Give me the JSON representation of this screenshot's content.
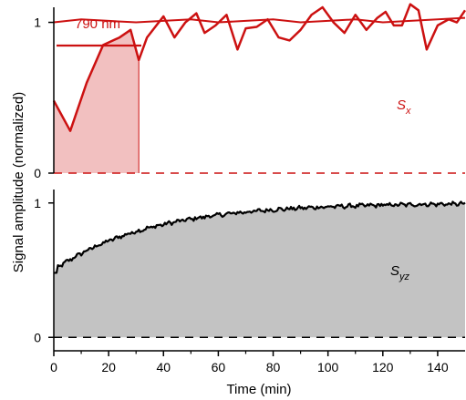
{
  "colors": {
    "red": "#cc1111",
    "red_fill": "#f2c0c0",
    "gray_fill": "#c3c3c3",
    "black": "#000000"
  },
  "chart_data": [
    {
      "type": "line",
      "panel": "top",
      "xlim": [
        0,
        150
      ],
      "ylim": [
        0,
        1.1
      ],
      "yticks": [
        0,
        1
      ],
      "ytick_labels": [
        "0",
        "1"
      ],
      "legend_text": "790 nm",
      "series_label": "S",
      "series_label_sub": "x",
      "series": [
        {
          "role": "signal",
          "x": [
            0,
            6,
            12,
            18,
            24,
            28,
            31,
            34,
            37,
            40,
            44,
            48,
            52,
            55,
            59,
            63,
            67,
            70,
            74,
            78,
            82,
            86,
            90,
            94,
            98,
            102,
            106,
            110,
            114,
            118,
            121,
            124,
            127,
            130,
            133,
            136,
            140,
            144,
            147,
            150
          ],
          "y": [
            0.48,
            0.28,
            0.6,
            0.85,
            0.9,
            0.95,
            0.75,
            0.9,
            0.97,
            1.04,
            0.9,
            1.0,
            1.06,
            0.93,
            0.98,
            1.05,
            0.82,
            0.96,
            0.97,
            1.02,
            0.9,
            0.88,
            0.95,
            1.05,
            1.1,
            1.0,
            0.93,
            1.05,
            0.95,
            1.03,
            1.07,
            0.98,
            0.98,
            1.12,
            1.08,
            0.82,
            0.98,
            1.02,
            1.0,
            1.08
          ]
        },
        {
          "role": "reference",
          "x": [
            0,
            10,
            20,
            30,
            40,
            50,
            60,
            70,
            80,
            90,
            100,
            110,
            120,
            130,
            140,
            150
          ],
          "y": [
            1.0,
            1.02,
            1.01,
            1.0,
            1.01,
            1.02,
            1.0,
            1.01,
            1.02,
            1.0,
            1.01,
            1.02,
            1.0,
            1.01,
            1.02,
            1.03
          ]
        }
      ],
      "shaded_region_x": [
        0,
        31
      ],
      "zero_line": "dashed"
    },
    {
      "type": "area",
      "panel": "bottom",
      "xlim": [
        0,
        150
      ],
      "ylim": [
        -0.1,
        1.1
      ],
      "yticks": [
        0,
        1
      ],
      "ytick_labels": [
        "0",
        "1"
      ],
      "xticks": [
        0,
        20,
        40,
        60,
        80,
        100,
        120,
        140
      ],
      "xtick_labels": [
        "0",
        "20",
        "40",
        "60",
        "80",
        "100",
        "120",
        "140"
      ],
      "xlabel": "Time (min)",
      "series_label": "S",
      "series_label_sub": "yz",
      "series": [
        {
          "role": "signal",
          "model": "1 - 0.5*exp(-t/35), with small measurement noise",
          "y_start": 0.48,
          "y_end": 1.0,
          "x_step": 0.5
        }
      ],
      "zero_line": "dashed"
    }
  ],
  "ylabel": "Signal amplitude (normalized)"
}
